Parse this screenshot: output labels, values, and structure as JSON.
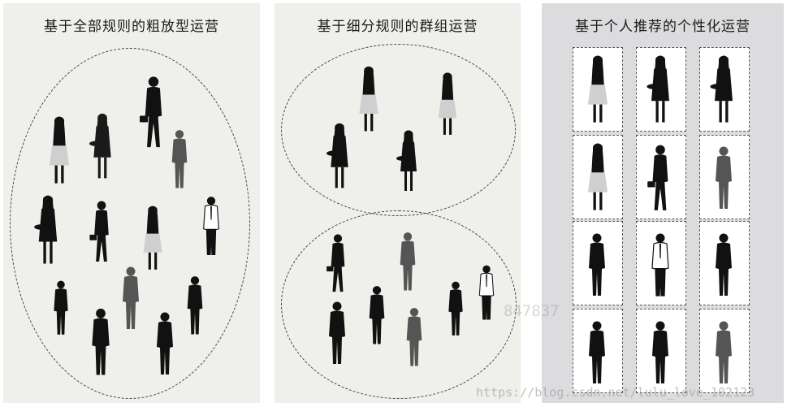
{
  "panels": [
    {
      "title": "基于全部规则的粗放型运营"
    },
    {
      "title": "基于细分规则的群组运营"
    },
    {
      "title": "基于个人推荐的个性化运营"
    }
  ],
  "watermark": {
    "center": "847837",
    "url": "https://blog.csdn.net/lulu_love_102123"
  }
}
